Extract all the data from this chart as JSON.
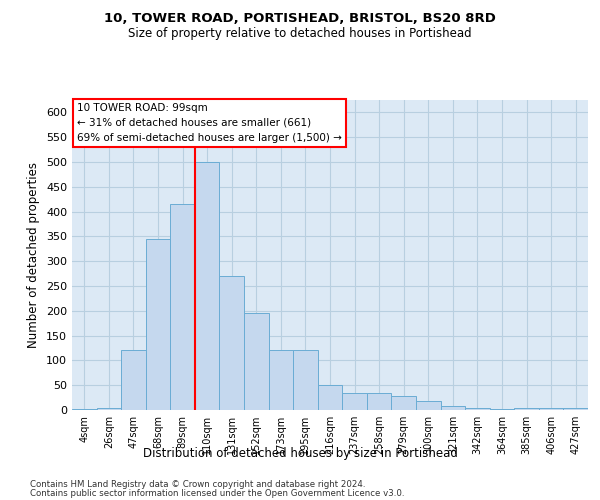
{
  "title1": "10, TOWER ROAD, PORTISHEAD, BRISTOL, BS20 8RD",
  "title2": "Size of property relative to detached houses in Portishead",
  "xlabel": "Distribution of detached houses by size in Portishead",
  "ylabel": "Number of detached properties",
  "bar_color": "#c5d8ee",
  "bar_edge_color": "#6aacd4",
  "grid_color": "#b8cfe0",
  "background_color": "#dce9f5",
  "categories": [
    "4sqm",
    "26sqm",
    "47sqm",
    "68sqm",
    "89sqm",
    "110sqm",
    "131sqm",
    "152sqm",
    "173sqm",
    "195sqm",
    "216sqm",
    "237sqm",
    "258sqm",
    "279sqm",
    "300sqm",
    "321sqm",
    "342sqm",
    "364sqm",
    "385sqm",
    "406sqm",
    "427sqm"
  ],
  "values": [
    2,
    4,
    120,
    345,
    415,
    500,
    270,
    195,
    120,
    120,
    50,
    35,
    35,
    28,
    18,
    8,
    4,
    2,
    5,
    4,
    5
  ],
  "ylim": [
    0,
    625
  ],
  "yticks": [
    0,
    50,
    100,
    150,
    200,
    250,
    300,
    350,
    400,
    450,
    500,
    550,
    600
  ],
  "vline_pos": 4.5,
  "annotation_text": "10 TOWER ROAD: 99sqm\n← 31% of detached houses are smaller (661)\n69% of semi-detached houses are larger (1,500) →",
  "annotation_box_color": "white",
  "annotation_box_edge": "red",
  "footer1": "Contains HM Land Registry data © Crown copyright and database right 2024.",
  "footer2": "Contains public sector information licensed under the Open Government Licence v3.0."
}
